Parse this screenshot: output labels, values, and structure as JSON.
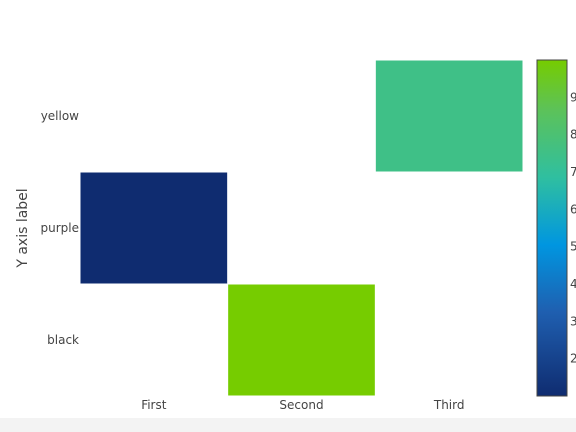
{
  "chart_data": {
    "type": "heatmap",
    "x_categories": [
      "First",
      "Second",
      "Third"
    ],
    "y_categories": [
      "black",
      "purple",
      "yellow"
    ],
    "cells": [
      {
        "x": "Third",
        "y": "yellow",
        "value": 7.5
      },
      {
        "x": "First",
        "y": "purple",
        "value": 1.0
      },
      {
        "x": "Second",
        "y": "black",
        "value": 10.0
      }
    ],
    "ylabel": "Y axis label",
    "xlabel": "",
    "title": "",
    "colorscale": [
      [
        0.0,
        "#0f2c70"
      ],
      [
        0.25,
        "#1f5fb0"
      ],
      [
        0.45,
        "#0096e0"
      ],
      [
        0.65,
        "#2fbfa0"
      ],
      [
        0.85,
        "#5cc25a"
      ],
      [
        1.0,
        "#76cc00"
      ]
    ],
    "colorbar": {
      "range": [
        1.0,
        10.0
      ],
      "ticks": [
        "2",
        "3",
        "4",
        "5",
        "6",
        "7",
        "8",
        "9"
      ]
    }
  }
}
